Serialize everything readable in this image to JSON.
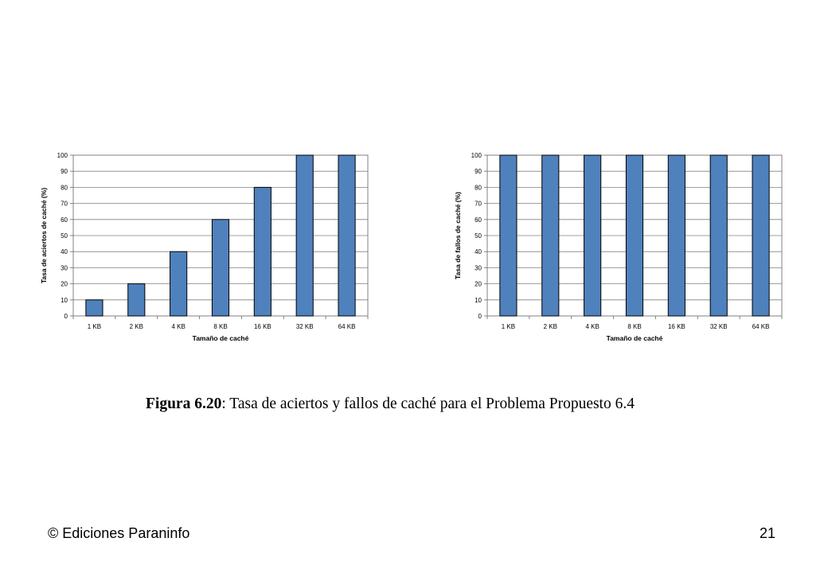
{
  "chart_data": [
    {
      "type": "bar",
      "categories": [
        "1 KB",
        "2 KB",
        "4 KB",
        "8 KB",
        "16 KB",
        "32 KB",
        "64 KB"
      ],
      "values": [
        10,
        20,
        40,
        60,
        80,
        100,
        100
      ],
      "xlabel": "Tamaño de caché",
      "ylabel": "Tasa de aciertos de caché (%)",
      "ylim": [
        0,
        100
      ],
      "yticks": [
        0,
        10,
        20,
        30,
        40,
        50,
        60,
        70,
        80,
        90,
        100
      ],
      "grid": true,
      "bar_color": "#4F81BD"
    },
    {
      "type": "bar",
      "categories": [
        "1 KB",
        "2 KB",
        "4 KB",
        "8 KB",
        "16 KB",
        "32 KB",
        "64 KB"
      ],
      "values": [
        100,
        100,
        100,
        100,
        100,
        100,
        100
      ],
      "xlabel": "Tamaño de caché",
      "ylabel": "Tasa de fallos de caché (%)",
      "ylim": [
        0,
        100
      ],
      "yticks": [
        0,
        10,
        20,
        30,
        40,
        50,
        60,
        70,
        80,
        90,
        100
      ],
      "grid": true,
      "bar_color": "#4F81BD"
    }
  ],
  "caption": {
    "label": "Figura 6.20",
    "text": ": Tasa de aciertos y fallos de caché para el Problema Propuesto 6.4"
  },
  "footer": {
    "copyright": "© Ediciones Paraninfo",
    "page_number": "21"
  }
}
